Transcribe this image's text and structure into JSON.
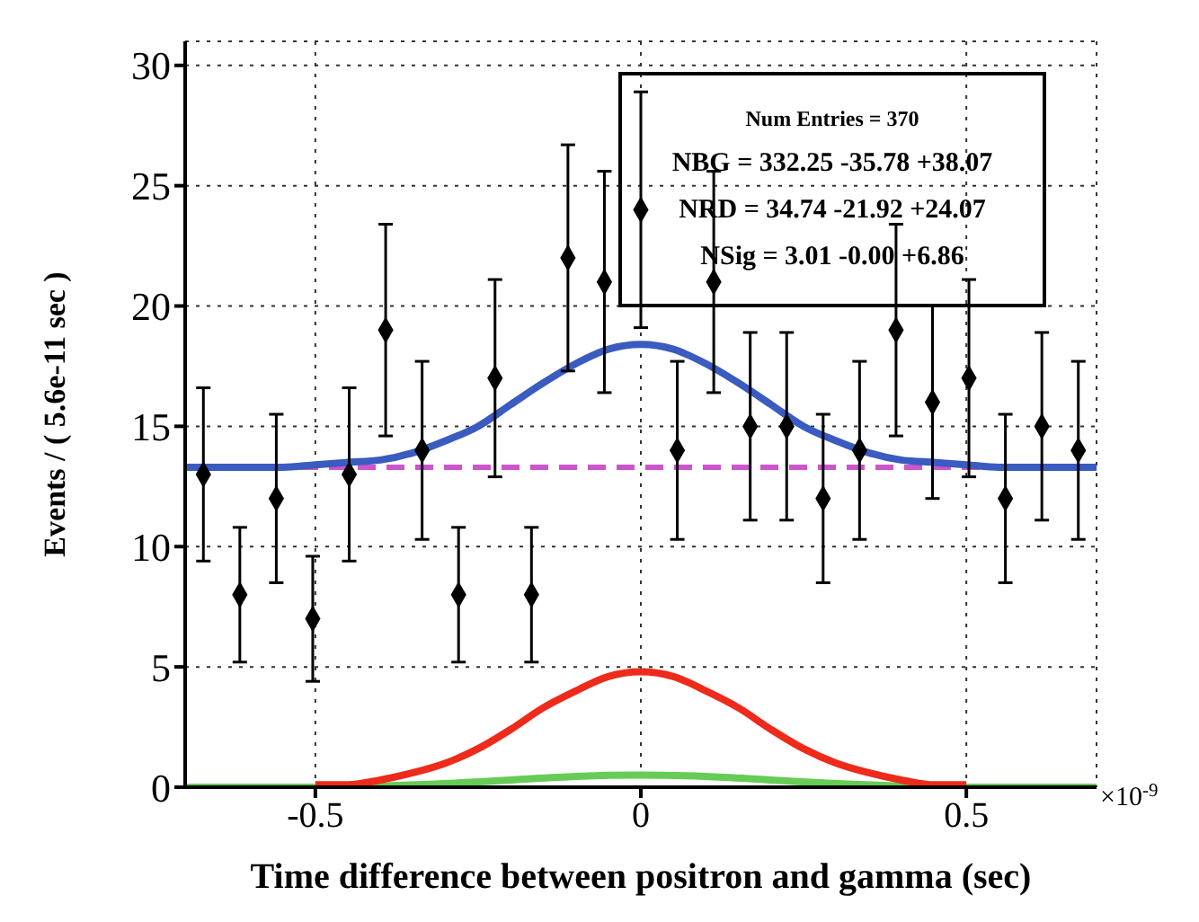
{
  "chart_data": {
    "type": "scatter",
    "xlabel": "Time difference between positron and gamma (sec)",
    "ylabel": "Events / ( 5.6e-11 sec )",
    "xlim": [
      -0.7,
      0.7
    ],
    "xticks": [
      -0.5,
      0,
      0.5
    ],
    "ylim": [
      0,
      31
    ],
    "yticks": [
      0,
      5,
      10,
      15,
      20,
      25,
      30
    ],
    "grid": true,
    "annotations": [
      "Num Entries = 370",
      "NBG = 332.25 -35.78 +38.07",
      "NRD = 34.74 -21.92 +24.07",
      "NSig = 3.01 -0.00 +6.86",
      "×10$^{-9}$"
    ],
    "series": [
      {
        "color": "#000000",
        "marker": "diamond",
        "x": [
          -0.672,
          -0.616,
          -0.56,
          -0.504,
          -0.448,
          -0.392,
          -0.336,
          -0.28,
          -0.224,
          -0.168,
          -0.112,
          -0.056,
          0,
          0.056,
          0.112,
          0.168,
          0.224,
          0.28,
          0.336,
          0.392,
          0.448,
          0.504,
          0.56,
          0.616,
          0.672
        ],
        "values": [
          13,
          8,
          12,
          7,
          13,
          19,
          14,
          8,
          17,
          8,
          22,
          21,
          24,
          14,
          21,
          15,
          15,
          12,
          14,
          19,
          16,
          17,
          12,
          15,
          14
        ],
        "errors": [
          3.6,
          2.8,
          3.5,
          2.6,
          3.6,
          4.4,
          3.7,
          2.8,
          4.1,
          2.8,
          4.7,
          4.6,
          4.9,
          3.7,
          4.6,
          3.9,
          3.9,
          3.5,
          3.7,
          4.4,
          4.0,
          4.1,
          3.5,
          3.9,
          3.7
        ]
      },
      {
        "type": "line",
        "color": "#cc55cc",
        "line_style": "dashed",
        "marker": "none",
        "x": [
          -0.7,
          0.7
        ],
        "values": [
          13.3,
          13.3
        ]
      },
      {
        "type": "line",
        "color": "#66cc55",
        "line_style": "solid",
        "marker": "none",
        "x": [
          -0.7,
          -0.6,
          -0.5,
          -0.4,
          -0.3,
          -0.2,
          -0.1,
          0,
          0.1,
          0.2,
          0.3,
          0.4,
          0.5,
          0.6,
          0.7
        ],
        "values": [
          0,
          0,
          0,
          0.05,
          0.15,
          0.3,
          0.45,
          0.5,
          0.45,
          0.3,
          0.15,
          0.05,
          0,
          0,
          0
        ]
      },
      {
        "type": "line",
        "color": "#ee2a1b",
        "line_style": "solid",
        "marker": "none",
        "x": [
          -0.5,
          -0.45,
          -0.4,
          -0.35,
          -0.3,
          -0.25,
          -0.2,
          -0.15,
          -0.1,
          -0.05,
          0,
          0.05,
          0.1,
          0.15,
          0.2,
          0.25,
          0.3,
          0.35,
          0.4,
          0.45,
          0.5
        ],
        "values": [
          0.1,
          0.1,
          0.3,
          0.6,
          1.0,
          1.6,
          2.4,
          3.3,
          4.0,
          4.6,
          4.8,
          4.6,
          4.0,
          3.3,
          2.4,
          1.6,
          1.0,
          0.6,
          0.3,
          0.1,
          0.1
        ]
      },
      {
        "type": "line",
        "color": "#3a5bbf",
        "line_style": "solid",
        "marker": "none",
        "x": [
          -0.7,
          -0.65,
          -0.6,
          -0.55,
          -0.5,
          -0.45,
          -0.4,
          -0.35,
          -0.3,
          -0.25,
          -0.2,
          -0.15,
          -0.1,
          -0.05,
          0,
          0.05,
          0.1,
          0.15,
          0.2,
          0.25,
          0.3,
          0.35,
          0.4,
          0.45,
          0.5,
          0.55,
          0.6,
          0.65,
          0.7
        ],
        "values": [
          13.3,
          13.3,
          13.3,
          13.3,
          13.4,
          13.5,
          13.6,
          13.9,
          14.4,
          15.0,
          15.9,
          16.8,
          17.6,
          18.2,
          18.4,
          18.2,
          17.6,
          16.8,
          15.9,
          15.0,
          14.4,
          13.9,
          13.6,
          13.5,
          13.4,
          13.3,
          13.3,
          13.3,
          13.3
        ]
      }
    ]
  }
}
